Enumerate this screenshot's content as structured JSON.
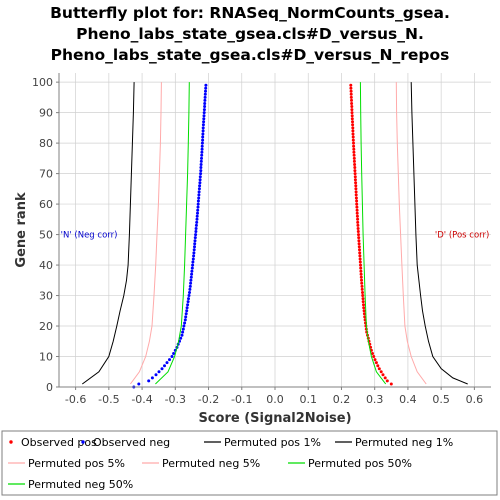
{
  "chart_data": {
    "type": "scatter",
    "title_lines": [
      "Butterfly plot for: RNASeq_NormCounts_gsea.",
      "Pheno_labs_state_gsea.cls#D_versus_N.",
      "Pheno_labs_state_gsea.cls#D_versus_N_repos"
    ],
    "xlabel": "Score (Signal2Noise)",
    "ylabel": "Gene rank",
    "xlim": [
      -0.65,
      0.65
    ],
    "ylim": [
      0,
      103
    ],
    "xticks": [
      -0.6,
      -0.5,
      -0.4,
      -0.3,
      -0.2,
      -0.1,
      0.0,
      0.1,
      0.2,
      0.3,
      0.4,
      0.5,
      0.6
    ],
    "xtick_labels": [
      "-0.6",
      "-0.5",
      "-0.4",
      "-0.3",
      "-0.2",
      "-0.1",
      "0.0",
      "0.1",
      "0.2",
      "0.3",
      "0.4",
      "0.5",
      "0.6"
    ],
    "yticks": [
      0,
      10,
      20,
      30,
      40,
      50,
      60,
      70,
      80,
      90,
      100
    ],
    "ytick_labels": [
      "0",
      "10",
      "20",
      "30",
      "40",
      "50",
      "60",
      "70",
      "80",
      "90",
      "100"
    ],
    "grid": true,
    "annotations": [
      {
        "text": "'N' (Neg corr)",
        "x": -0.645,
        "y": 50,
        "color": "#0000cc",
        "align": "left"
      },
      {
        "text": "'D' (Pos corr)",
        "x": 0.645,
        "y": 50,
        "color": "#cc0000",
        "align": "right"
      }
    ],
    "series": [
      {
        "name": "Observed pos",
        "kind": "points",
        "color": "#ff0000",
        "x": [
          0.228,
          0.231,
          0.234,
          0.237,
          0.24,
          0.243,
          0.246,
          0.249,
          0.252,
          0.255,
          0.258,
          0.261,
          0.264,
          0.267,
          0.271,
          0.276,
          0.283,
          0.29,
          0.297,
          0.305,
          0.314,
          0.325,
          0.338,
          0.35
        ],
        "y": [
          99,
          92,
          85,
          78,
          72,
          66,
          60,
          54,
          49,
          44,
          39,
          34,
          30,
          26,
          22,
          18,
          15,
          12,
          10,
          8,
          6,
          4,
          2,
          1
        ]
      },
      {
        "name": "Observed neg",
        "kind": "points",
        "color": "#0000ff",
        "x": [
          -0.208,
          -0.212,
          -0.216,
          -0.22,
          -0.224,
          -0.229,
          -0.234,
          -0.239,
          -0.244,
          -0.25,
          -0.256,
          -0.263,
          -0.27,
          -0.28,
          -0.295,
          -0.31,
          -0.325,
          -0.34,
          -0.358,
          -0.38,
          -0.41,
          -0.425
        ],
        "y": [
          99,
          92,
          85,
          77,
          70,
          63,
          56,
          50,
          44,
          38,
          32,
          27,
          22,
          17,
          13,
          10,
          8,
          6,
          4,
          2,
          1,
          0
        ]
      },
      {
        "name": "Permuted pos 1%",
        "kind": "line",
        "color": "#000000",
        "x": [
          0.41,
          0.412,
          0.415,
          0.418,
          0.421,
          0.424,
          0.428,
          0.433,
          0.438,
          0.444,
          0.452,
          0.462,
          0.475,
          0.5,
          0.535,
          0.58
        ],
        "y": [
          100,
          90,
          80,
          70,
          60,
          50,
          40,
          35,
          30,
          25,
          20,
          15,
          10,
          6,
          3,
          1
        ]
      },
      {
        "name": "Permuted neg 1%",
        "kind": "line",
        "color": "#000000",
        "x": [
          -0.424,
          -0.426,
          -0.429,
          -0.432,
          -0.435,
          -0.438,
          -0.442,
          -0.447,
          -0.455,
          -0.466,
          -0.476,
          -0.487,
          -0.5,
          -0.53,
          -0.58
        ],
        "y": [
          100,
          90,
          80,
          70,
          60,
          50,
          40,
          35,
          30,
          25,
          20,
          15,
          10,
          5,
          1
        ]
      },
      {
        "name": "Permuted pos 5%",
        "kind": "line",
        "color": "#ffaaaa",
        "x": [
          0.365,
          0.366,
          0.368,
          0.371,
          0.374,
          0.378,
          0.382,
          0.386,
          0.391,
          0.398,
          0.41,
          0.428,
          0.455
        ],
        "y": [
          100,
          90,
          80,
          70,
          60,
          50,
          40,
          30,
          20,
          15,
          10,
          5,
          1
        ]
      },
      {
        "name": "Permuted neg 5%",
        "kind": "line",
        "color": "#ffaaaa",
        "x": [
          -0.342,
          -0.343,
          -0.345,
          -0.348,
          -0.351,
          -0.355,
          -0.359,
          -0.364,
          -0.37,
          -0.378,
          -0.389,
          -0.408,
          -0.435
        ],
        "y": [
          100,
          90,
          80,
          70,
          60,
          50,
          40,
          30,
          20,
          15,
          10,
          5,
          1
        ]
      },
      {
        "name": "Permuted pos 50%",
        "kind": "line",
        "color": "#00dd00",
        "x": [
          0.257,
          0.258,
          0.259,
          0.261,
          0.263,
          0.265,
          0.268,
          0.271,
          0.275,
          0.281,
          0.29,
          0.305,
          0.333
        ],
        "y": [
          100,
          90,
          80,
          70,
          60,
          50,
          40,
          30,
          20,
          15,
          10,
          5,
          1
        ]
      },
      {
        "name": "Permuted neg 50%",
        "kind": "line",
        "color": "#00dd00",
        "x": [
          -0.258,
          -0.259,
          -0.261,
          -0.263,
          -0.266,
          -0.269,
          -0.272,
          -0.276,
          -0.282,
          -0.29,
          -0.302,
          -0.322,
          -0.36
        ],
        "y": [
          100,
          90,
          80,
          70,
          60,
          50,
          40,
          30,
          20,
          15,
          10,
          5,
          1
        ]
      }
    ],
    "legend": [
      {
        "label": "Observed pos",
        "color": "#ff0000",
        "marker": "dot"
      },
      {
        "label": "Observed neg",
        "color": "#0000ff",
        "marker": "dot"
      },
      {
        "label": "Permuted pos 1%",
        "color": "#000000",
        "marker": "line"
      },
      {
        "label": "Permuted neg 1%",
        "color": "#000000",
        "marker": "line"
      },
      {
        "label": "Permuted pos 5%",
        "color": "#ffaaaa",
        "marker": "line"
      },
      {
        "label": "Permuted neg 5%",
        "color": "#ffaaaa",
        "marker": "line"
      },
      {
        "label": "Permuted pos 50%",
        "color": "#00dd00",
        "marker": "line"
      },
      {
        "label": "Permuted neg 50%",
        "color": "#00dd00",
        "marker": "line"
      }
    ],
    "legend_placement": "bottom"
  },
  "colors": {
    "plot_background": "#ffffff",
    "grid": "#d0d0d0",
    "axis_line": "#808080",
    "legend_border": "#7f7f7f"
  }
}
